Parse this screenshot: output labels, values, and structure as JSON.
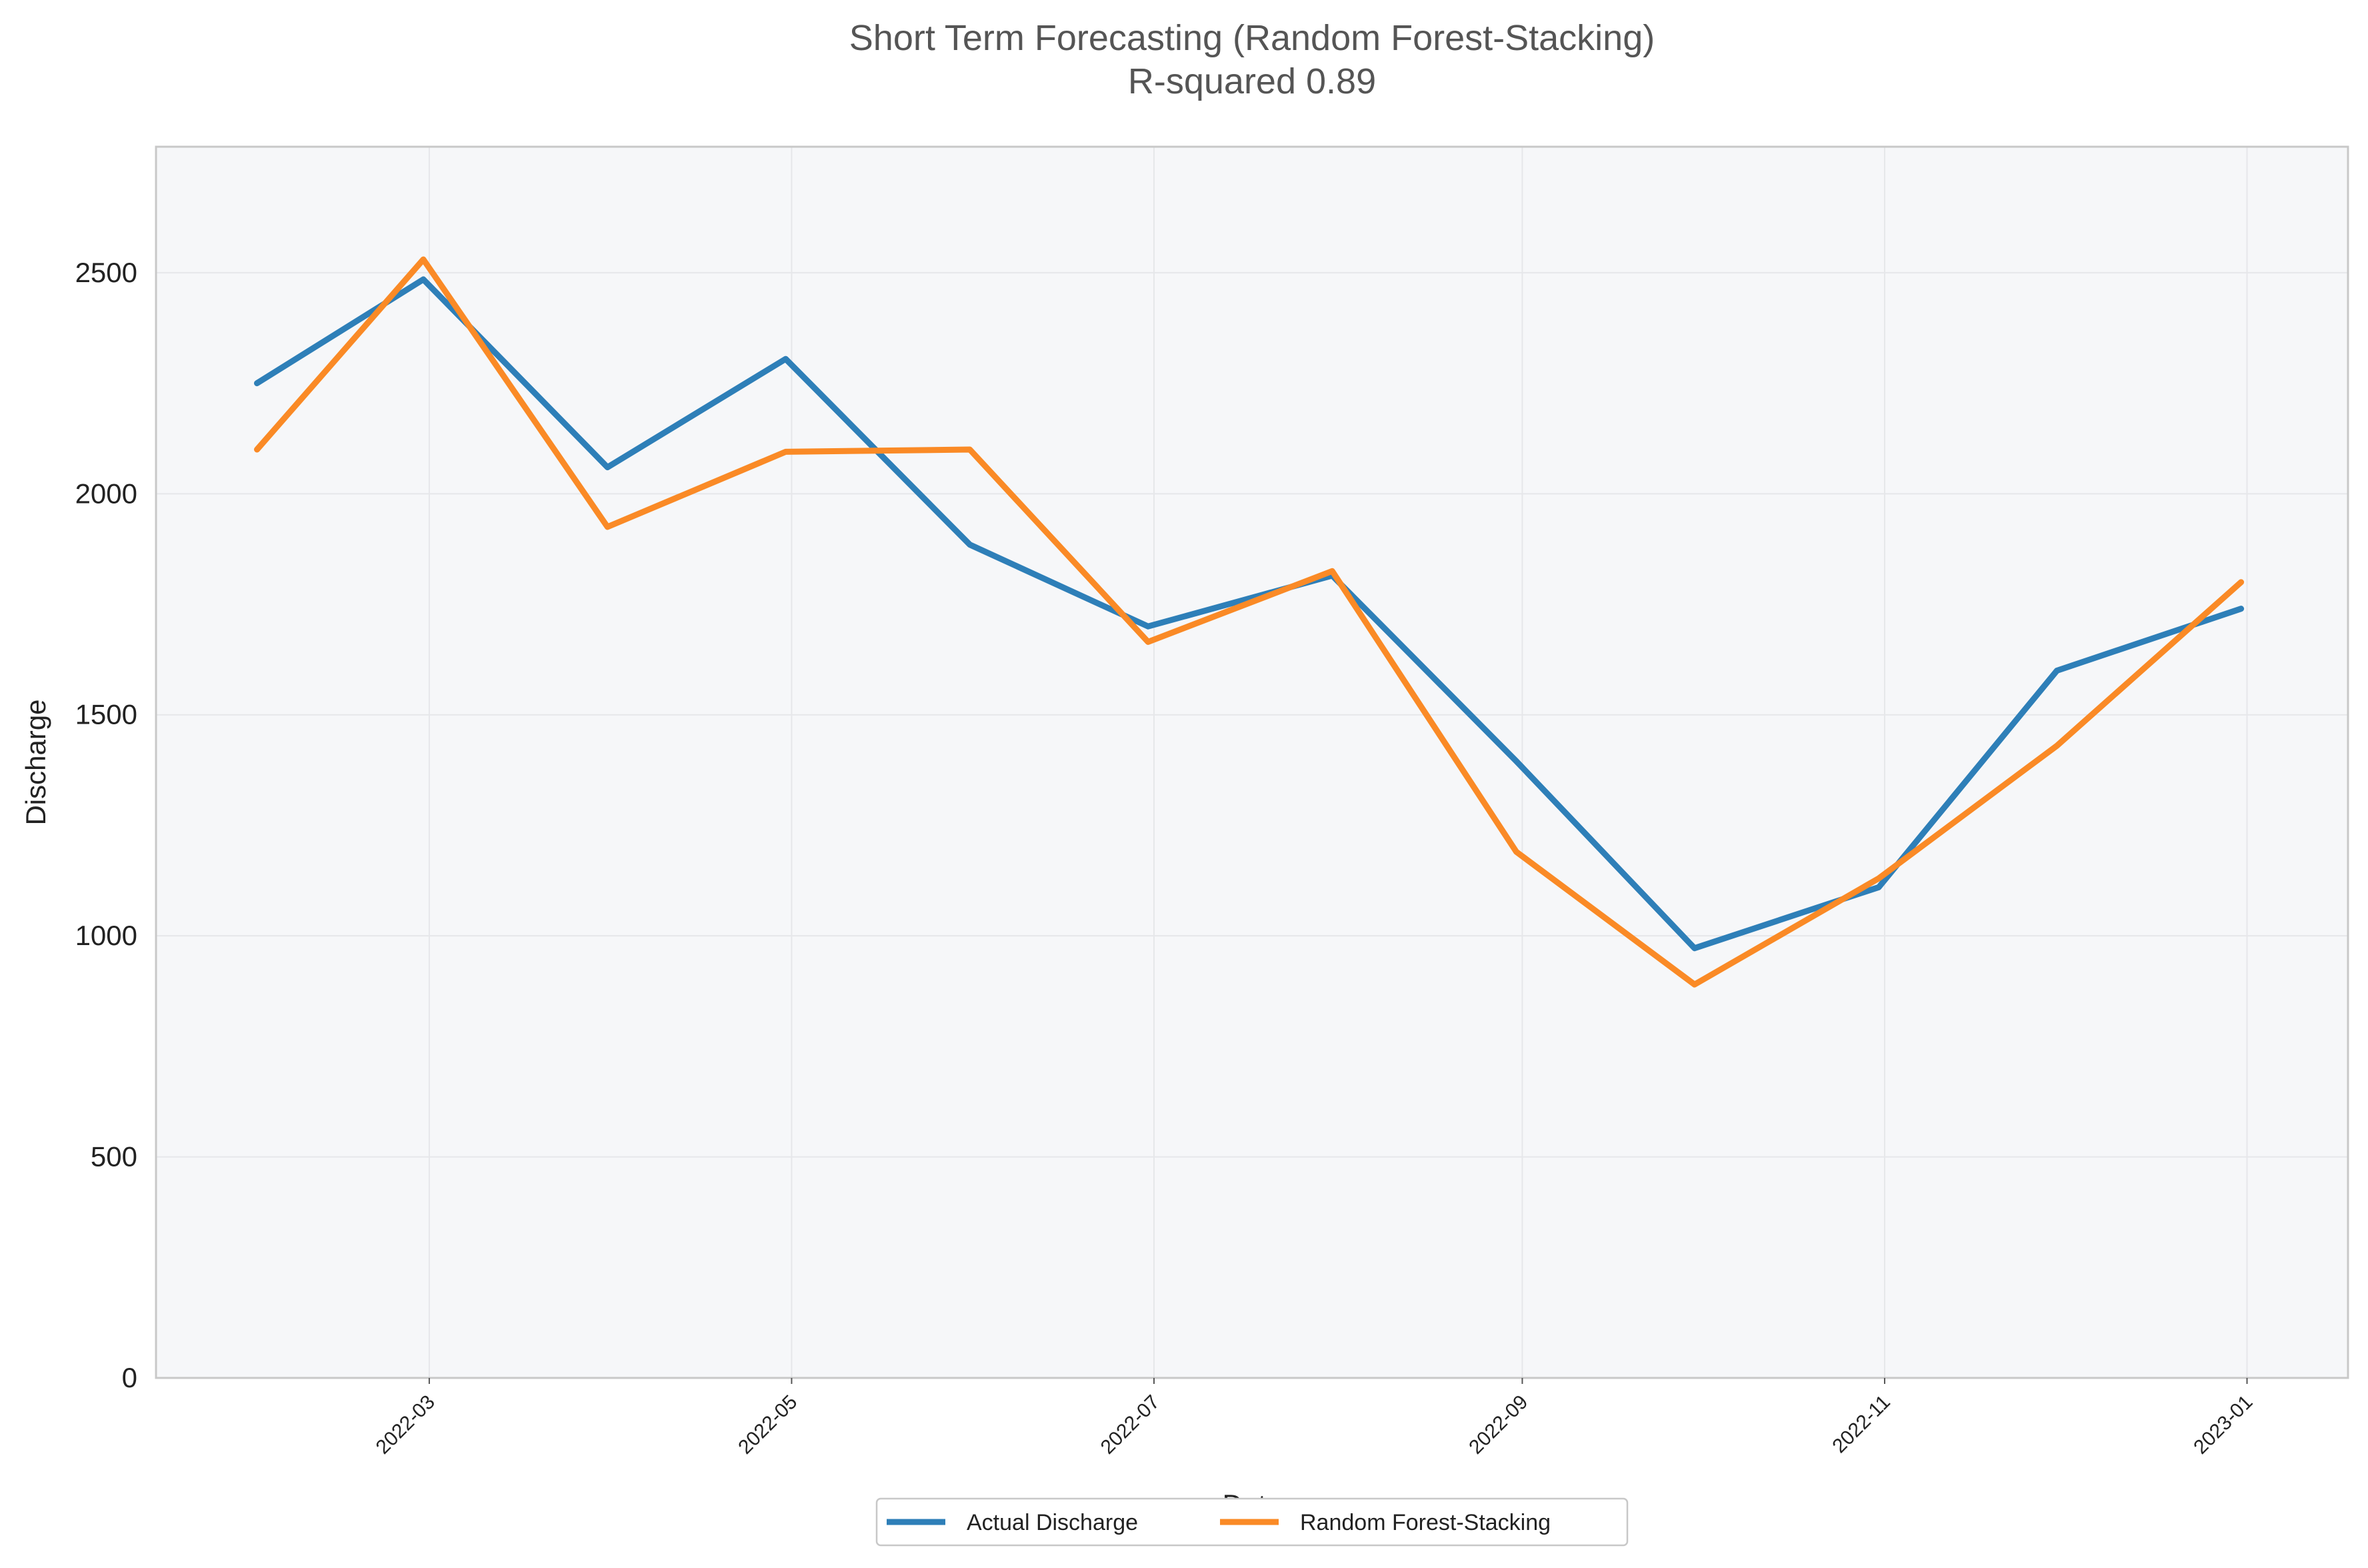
{
  "chart_data": {
    "type": "line",
    "title": "Short Term Forecasting (Random Forest-Stacking)",
    "subtitle": "R-squared 0.89",
    "xlabel": "Date",
    "ylabel": "Discharge",
    "x": [
      "2022-01-31",
      "2022-02-28",
      "2022-03-31",
      "2022-04-30",
      "2022-05-31",
      "2022-06-30",
      "2022-07-31",
      "2022-08-31",
      "2022-09-30",
      "2022-10-31",
      "2022-11-30",
      "2022-12-31"
    ],
    "series": [
      {
        "name": "Actual Discharge",
        "color": "#2e7fb8",
        "values": [
          2250,
          2485,
          2060,
          2305,
          1885,
          1700,
          1815,
          1395,
          972,
          1110,
          1600,
          1740
        ]
      },
      {
        "name": "Random Forest-Stacking",
        "color": "#fa8a26",
        "values": [
          2100,
          2530,
          1925,
          2095,
          2100,
          1665,
          1825,
          1190,
          890,
          1130,
          1430,
          1800
        ]
      }
    ],
    "ylim": [
      0,
      2785
    ],
    "xlim": [
      "2022-01-14",
      "2023-01-18"
    ],
    "yticks": [
      0,
      500,
      1000,
      1500,
      2000,
      2500
    ],
    "xticks": [
      "2022-03-01",
      "2022-05-01",
      "2022-07-01",
      "2022-09-01",
      "2022-11-01",
      "2023-01-01"
    ],
    "xtick_labels": [
      "2022-03",
      "2022-05",
      "2022-07",
      "2022-09",
      "2022-11",
      "2023-01"
    ],
    "grid": true,
    "legend_position": "bottom-center",
    "plot_background": "#f6f7f9"
  }
}
